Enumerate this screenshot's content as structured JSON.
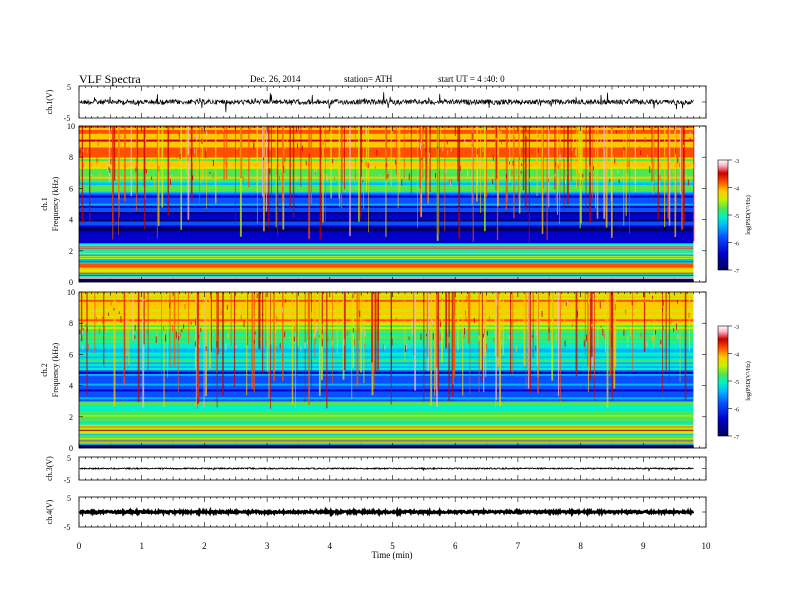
{
  "header": {
    "title": "VLF  Spectra",
    "date": "Dec. 26,  2014",
    "station": "station= ATH",
    "start": "start  UT  =   4  :40: 0"
  },
  "colors": {
    "spectrum": [
      "#000060",
      "#0000c8",
      "#0a50ff",
      "#00b4ff",
      "#00f0c8",
      "#50e650",
      "#c8f000",
      "#ffc800",
      "#ff5000",
      "#c80000",
      "#ffb4c8",
      "#ffffff"
    ]
  },
  "chart_data": [
    {
      "type": "line",
      "panel": "ch1-waveform",
      "ylabel": "ch.1(V)",
      "ylim": [
        -5,
        5
      ],
      "yticks": [
        "5",
        "-5"
      ],
      "series": [
        {
          "x": [
            0,
            9.8
          ],
          "y": [
            0,
            0
          ]
        }
      ],
      "note_text": ""
    },
    {
      "type": "heatmap",
      "panel": "ch1-spectrogram",
      "ylabel_top": "ch.1",
      "ylabel": "Frequency  (kHz)",
      "ylim": [
        0,
        10
      ],
      "yticks": [
        "0",
        "2",
        "4",
        "6",
        "8",
        "10"
      ],
      "colorbar": {
        "label": "log(PSD(V²/Hz)",
        "ticks": [
          "-3",
          "-4",
          "-5",
          "-6",
          "-7"
        ],
        "range": [
          -7,
          -3
        ]
      },
      "bands": [
        {
          "from": 0,
          "to": 0.5,
          "level": -3.6
        },
        {
          "from": 0.5,
          "to": 1.2,
          "level": -4.6
        },
        {
          "from": 1.2,
          "to": 2.5,
          "level": -5.6
        },
        {
          "from": 2.5,
          "to": 4.5,
          "level": -6.8
        },
        {
          "from": 4.5,
          "to": 5.8,
          "level": -6.3
        },
        {
          "from": 5.8,
          "to": 6.5,
          "level": -5.5
        },
        {
          "from": 6.5,
          "to": 8.0,
          "level": -4.9
        },
        {
          "from": 8.0,
          "to": 10,
          "level": -4.3
        }
      ]
    },
    {
      "type": "heatmap",
      "panel": "ch2-spectrogram",
      "ylabel_top": "ch.2",
      "ylabel": "Frequency  (kHz)",
      "ylim": [
        0,
        10
      ],
      "yticks": [
        "0",
        "2",
        "4",
        "6",
        "8",
        "10"
      ],
      "colorbar": {
        "label": "log(PSD(V²/Hz)",
        "ticks": [
          "-3",
          "-4",
          "-5",
          "-6",
          "-7"
        ],
        "range": [
          -7,
          -3
        ]
      },
      "bands": [
        {
          "from": 0,
          "to": 0.5,
          "level": -4.2
        },
        {
          "from": 0.5,
          "to": 2.0,
          "level": -5.0
        },
        {
          "from": 2.0,
          "to": 3.0,
          "level": -5.5
        },
        {
          "from": 3.0,
          "to": 5.0,
          "level": -6.2
        },
        {
          "from": 5.0,
          "to": 6.5,
          "level": -5.6
        },
        {
          "from": 6.5,
          "to": 8.0,
          "level": -5.3
        },
        {
          "from": 8.0,
          "to": 10,
          "level": -4.6
        }
      ]
    },
    {
      "type": "line",
      "panel": "ch3-waveform",
      "ylabel": "ch.3(V)",
      "ylim": [
        -5,
        5
      ],
      "yticks": [
        "5",
        "-5"
      ],
      "series": [
        {
          "x": [
            0,
            9.8
          ],
          "y": [
            0,
            0
          ]
        }
      ]
    },
    {
      "type": "line",
      "panel": "ch4-waveform",
      "ylabel": "ch.4(V)",
      "ylim": [
        -5,
        5
      ],
      "yticks": [
        "5",
        "-5"
      ],
      "series": [
        {
          "x": [
            0,
            9.8
          ],
          "y": [
            0,
            0
          ]
        }
      ]
    }
  ],
  "xaxis": {
    "label": "Time  (min)",
    "ticks": [
      "0",
      "1",
      "2",
      "3",
      "4",
      "5",
      "6",
      "7",
      "8",
      "9",
      "10"
    ],
    "xlim": [
      0,
      10
    ],
    "data_end": 9.8
  }
}
